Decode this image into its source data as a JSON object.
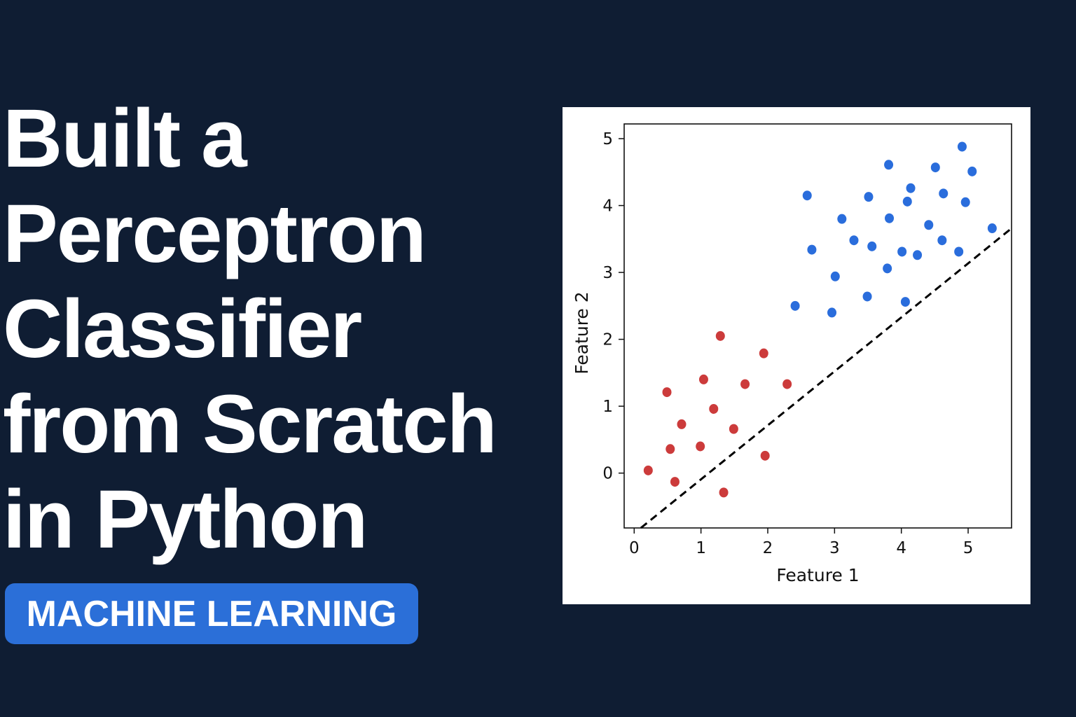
{
  "headline": {
    "lines": [
      "Built a",
      "Perceptron",
      "Classifier",
      "from Scratch",
      "in Python"
    ]
  },
  "tag": {
    "label": "MACHINE LEARNING",
    "color": "#2b6fd8"
  },
  "colors": {
    "background": "#0f1d33",
    "class_red": "#cc3b3b",
    "class_blue": "#2a6ddc",
    "boundary": "#000000"
  },
  "chart_data": {
    "type": "scatter",
    "title": "",
    "xlabel": "Feature 1",
    "ylabel": "Feature 2",
    "xlim": [
      -0.15,
      5.65
    ],
    "ylim": [
      -0.82,
      5.22
    ],
    "xticks": [
      0,
      1,
      2,
      3,
      4,
      5
    ],
    "yticks": [
      0,
      1,
      2,
      3,
      4,
      5
    ],
    "grid": false,
    "legend": "none",
    "series": [
      {
        "color": "#cc3b3b",
        "points": [
          [
            0.21,
            0.04
          ],
          [
            0.49,
            1.21
          ],
          [
            0.54,
            0.36
          ],
          [
            0.61,
            -0.13
          ],
          [
            0.71,
            0.73
          ],
          [
            0.99,
            0.4
          ],
          [
            1.04,
            1.4
          ],
          [
            1.19,
            0.96
          ],
          [
            1.29,
            2.05
          ],
          [
            1.34,
            -0.29
          ],
          [
            1.49,
            0.66
          ],
          [
            1.66,
            1.33
          ],
          [
            1.94,
            1.79
          ],
          [
            1.96,
            0.26
          ],
          [
            2.29,
            1.33
          ]
        ]
      },
      {
        "color": "#2a6ddc",
        "points": [
          [
            2.41,
            2.5
          ],
          [
            2.59,
            4.15
          ],
          [
            2.66,
            3.34
          ],
          [
            2.96,
            2.4
          ],
          [
            3.01,
            2.94
          ],
          [
            3.11,
            3.8
          ],
          [
            3.29,
            3.48
          ],
          [
            3.49,
            2.64
          ],
          [
            3.51,
            4.13
          ],
          [
            3.56,
            3.39
          ],
          [
            3.79,
            3.06
          ],
          [
            3.81,
            4.61
          ],
          [
            3.82,
            3.81
          ],
          [
            4.01,
            3.31
          ],
          [
            4.06,
            2.56
          ],
          [
            4.09,
            4.06
          ],
          [
            4.14,
            4.26
          ],
          [
            4.24,
            3.26
          ],
          [
            4.41,
            3.71
          ],
          [
            4.51,
            4.57
          ],
          [
            4.61,
            3.48
          ],
          [
            4.63,
            4.18
          ],
          [
            4.86,
            3.31
          ],
          [
            4.91,
            4.88
          ],
          [
            4.96,
            4.05
          ],
          [
            5.06,
            4.51
          ],
          [
            5.36,
            3.66
          ]
        ]
      }
    ],
    "decision_boundary": {
      "style": "dashed",
      "from": [
        0.1,
        -0.82
      ],
      "to": [
        5.65,
        3.66
      ]
    }
  }
}
